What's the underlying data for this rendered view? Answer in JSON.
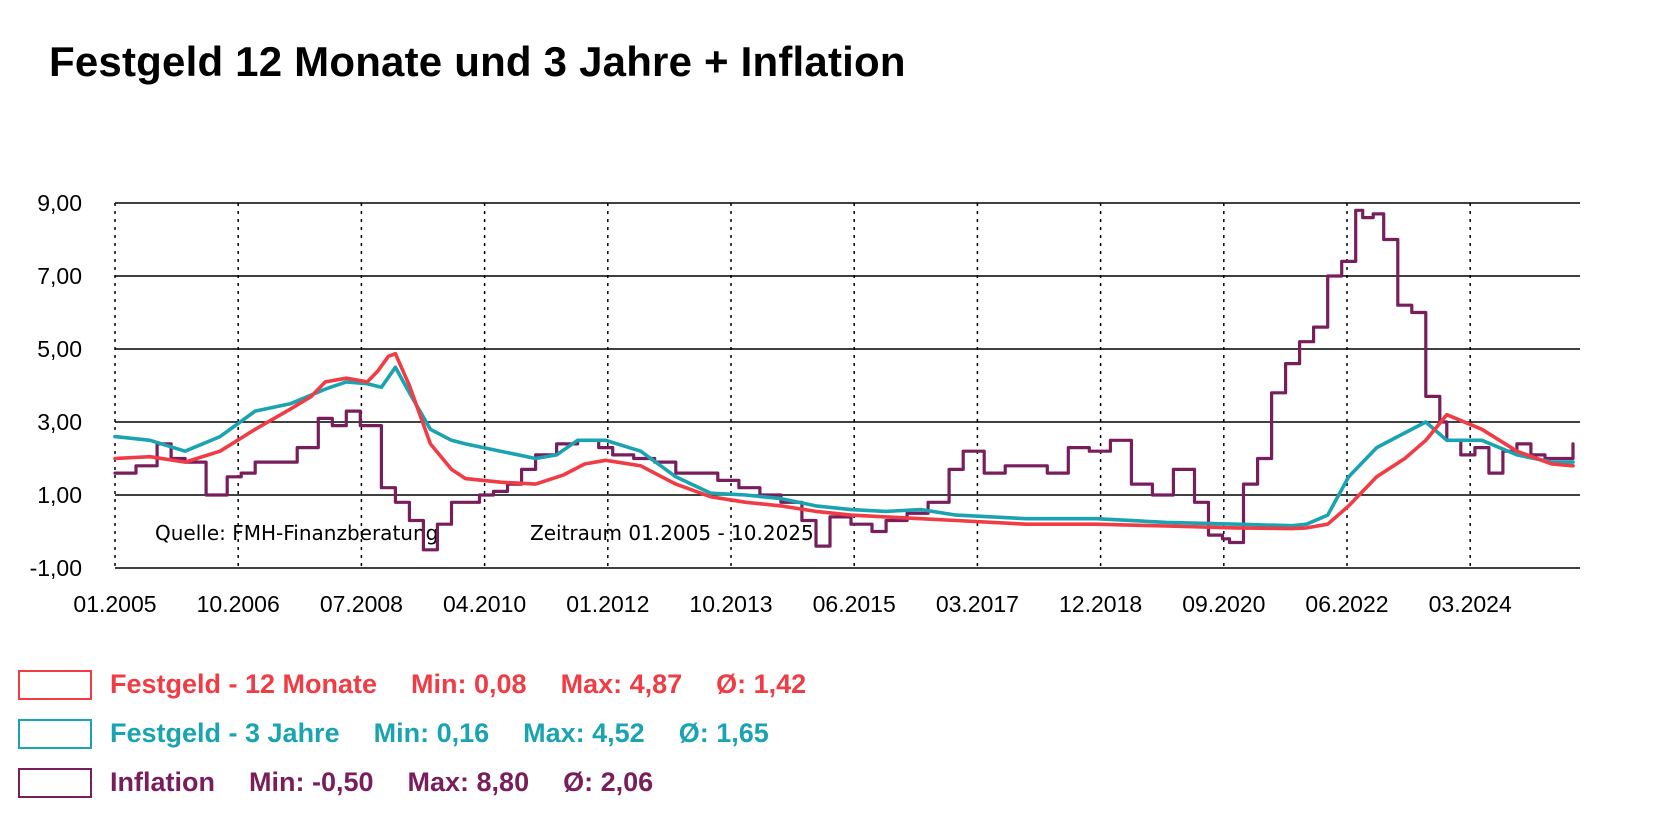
{
  "chart_data": {
    "type": "line",
    "title": "Festgeld 12 Monate und 3 Jahre + Inflation",
    "x_ticks": [
      "01.2005",
      "10.2006",
      "07.2008",
      "04.2010",
      "01.2012",
      "10.2013",
      "06.2015",
      "03.2017",
      "12.2018",
      "09.2020",
      "06.2022",
      "03.2024"
    ],
    "y_ticks": [
      "9,00",
      "7,00",
      "5,00",
      "3,00",
      "1,00",
      "-1,00"
    ],
    "ylim": [
      -1,
      9
    ],
    "xlim": [
      2005.0,
      2025.9
    ],
    "x_grid": "dotted",
    "y_grid": "solid",
    "annotations": {
      "source": "Quelle: FMH-Finanzberatung",
      "period": "Zeitraum 01.2005 - 10.2025"
    },
    "series": [
      {
        "name": "Festgeld - 12 Monate",
        "color": "#f03c44",
        "stats": {
          "min": "Min: 0,08",
          "max": "Max: 4,87",
          "avg": "Ø: 1,42"
        },
        "x": [
          2005.0,
          2005.5,
          2006.0,
          2006.5,
          2007.0,
          2007.5,
          2007.8,
          2008.0,
          2008.3,
          2008.6,
          2008.75,
          2008.9,
          2009.0,
          2009.2,
          2009.5,
          2009.8,
          2010.0,
          2010.5,
          2011.0,
          2011.4,
          2011.7,
          2012.0,
          2012.5,
          2013.0,
          2013.5,
          2014.0,
          2014.5,
          2015.0,
          2015.5,
          2016.0,
          2016.5,
          2017.0,
          2018.0,
          2019.0,
          2020.0,
          2021.0,
          2021.8,
          2022.0,
          2022.3,
          2022.6,
          2023.0,
          2023.4,
          2023.7,
          2024.0,
          2024.5,
          2025.0,
          2025.5,
          2025.8
        ],
        "y": [
          2.0,
          2.05,
          1.9,
          2.2,
          2.8,
          3.35,
          3.7,
          4.1,
          4.2,
          4.1,
          4.4,
          4.8,
          4.87,
          4.0,
          2.4,
          1.7,
          1.45,
          1.35,
          1.3,
          1.55,
          1.85,
          1.95,
          1.8,
          1.3,
          0.95,
          0.8,
          0.7,
          0.55,
          0.45,
          0.4,
          0.35,
          0.3,
          0.2,
          0.2,
          0.15,
          0.1,
          0.08,
          0.1,
          0.2,
          0.7,
          1.5,
          2.0,
          2.5,
          3.2,
          2.8,
          2.2,
          1.85,
          1.8
        ]
      },
      {
        "name": "Festgeld - 3 Jahre",
        "color": "#1aa3b0",
        "stats": {
          "min": "Min: 0,16",
          "max": "Max: 4,52",
          "avg": "Ø: 1,65"
        },
        "x": [
          2005.0,
          2005.5,
          2006.0,
          2006.5,
          2007.0,
          2007.5,
          2008.0,
          2008.3,
          2008.6,
          2008.8,
          2009.0,
          2009.2,
          2009.5,
          2009.8,
          2010.0,
          2010.5,
          2011.0,
          2011.3,
          2011.6,
          2012.0,
          2012.5,
          2013.0,
          2013.5,
          2014.0,
          2014.5,
          2015.0,
          2015.5,
          2016.0,
          2016.5,
          2017.0,
          2018.0,
          2019.0,
          2020.0,
          2021.0,
          2021.8,
          2022.0,
          2022.3,
          2022.6,
          2023.0,
          2023.4,
          2023.7,
          2024.0,
          2024.5,
          2025.0,
          2025.5,
          2025.8
        ],
        "y": [
          2.6,
          2.5,
          2.2,
          2.6,
          3.3,
          3.5,
          3.9,
          4.1,
          4.05,
          3.95,
          4.5,
          3.8,
          2.8,
          2.5,
          2.4,
          2.2,
          2.0,
          2.1,
          2.5,
          2.5,
          2.2,
          1.5,
          1.05,
          1.0,
          0.9,
          0.7,
          0.6,
          0.55,
          0.6,
          0.45,
          0.35,
          0.35,
          0.25,
          0.2,
          0.16,
          0.2,
          0.45,
          1.5,
          2.3,
          2.7,
          3.0,
          2.5,
          2.5,
          2.1,
          1.9,
          1.9
        ]
      },
      {
        "name": "Inflation",
        "color": "#781e5c",
        "stats": {
          "min": "Min: -0,50",
          "max": "Max: 8,80",
          "avg": "Ø: 2,06"
        },
        "x": [
          2005.0,
          2005.3,
          2005.6,
          2005.8,
          2006.0,
          2006.3,
          2006.6,
          2006.8,
          2007.0,
          2007.3,
          2007.6,
          2007.9,
          2008.1,
          2008.3,
          2008.5,
          2008.8,
          2009.0,
          2009.2,
          2009.4,
          2009.6,
          2009.8,
          2010.0,
          2010.2,
          2010.4,
          2010.6,
          2010.8,
          2011.0,
          2011.3,
          2011.6,
          2011.9,
          2012.1,
          2012.4,
          2012.7,
          2013.0,
          2013.3,
          2013.6,
          2013.9,
          2014.2,
          2014.5,
          2014.8,
          2015.0,
          2015.2,
          2015.5,
          2015.8,
          2016.0,
          2016.3,
          2016.6,
          2016.9,
          2017.1,
          2017.4,
          2017.7,
          2018.0,
          2018.3,
          2018.6,
          2018.9,
          2019.2,
          2019.5,
          2019.8,
          2020.1,
          2020.4,
          2020.6,
          2020.8,
          2020.9,
          2021.1,
          2021.3,
          2021.5,
          2021.7,
          2021.9,
          2022.1,
          2022.3,
          2022.5,
          2022.7,
          2022.8,
          2022.95,
          2023.1,
          2023.3,
          2023.5,
          2023.7,
          2023.9,
          2024.0,
          2024.2,
          2024.4,
          2024.6,
          2024.8,
          2025.0,
          2025.2,
          2025.4,
          2025.6,
          2025.8
        ],
        "y": [
          1.6,
          1.8,
          2.4,
          2.0,
          1.9,
          1.0,
          1.5,
          1.6,
          1.9,
          1.9,
          2.3,
          3.1,
          2.9,
          3.3,
          2.9,
          1.2,
          0.8,
          0.3,
          -0.5,
          0.2,
          0.8,
          0.8,
          1.0,
          1.1,
          1.3,
          1.7,
          2.1,
          2.4,
          2.5,
          2.3,
          2.1,
          2.0,
          1.9,
          1.6,
          1.6,
          1.4,
          1.2,
          1.0,
          0.8,
          0.3,
          -0.4,
          0.4,
          0.2,
          0.0,
          0.3,
          0.5,
          0.8,
          1.7,
          2.2,
          1.6,
          1.8,
          1.8,
          1.6,
          2.3,
          2.2,
          2.5,
          1.3,
          1.0,
          1.7,
          0.8,
          -0.1,
          -0.2,
          -0.3,
          1.3,
          2.0,
          3.8,
          4.6,
          5.2,
          5.6,
          7.0,
          7.4,
          8.8,
          8.6,
          8.7,
          8.0,
          6.2,
          6.0,
          3.7,
          3.0,
          2.5,
          2.1,
          2.3,
          1.6,
          2.2,
          2.4,
          2.1,
          2.0,
          2.0,
          2.4
        ]
      }
    ]
  }
}
